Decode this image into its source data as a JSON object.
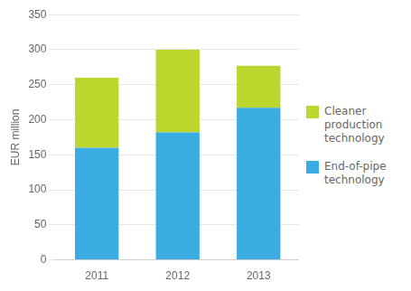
{
  "chart_data": {
    "type": "bar",
    "stacked": true,
    "categories": [
      "2011",
      "2012",
      "2013"
    ],
    "series": [
      {
        "name": "End-of-pipe\ntechnology",
        "color": "#3aace2",
        "values": [
          160,
          182,
          217
        ]
      },
      {
        "name": "Cleaner\nproduction\ntechnology",
        "color": "#bdd62e",
        "values": [
          100,
          118,
          60
        ]
      }
    ],
    "ylabel": "EUR million",
    "ylim": [
      0,
      350
    ],
    "yticks": [
      0,
      50,
      100,
      150,
      200,
      250,
      300,
      350
    ],
    "grid": true,
    "legend": "right"
  }
}
